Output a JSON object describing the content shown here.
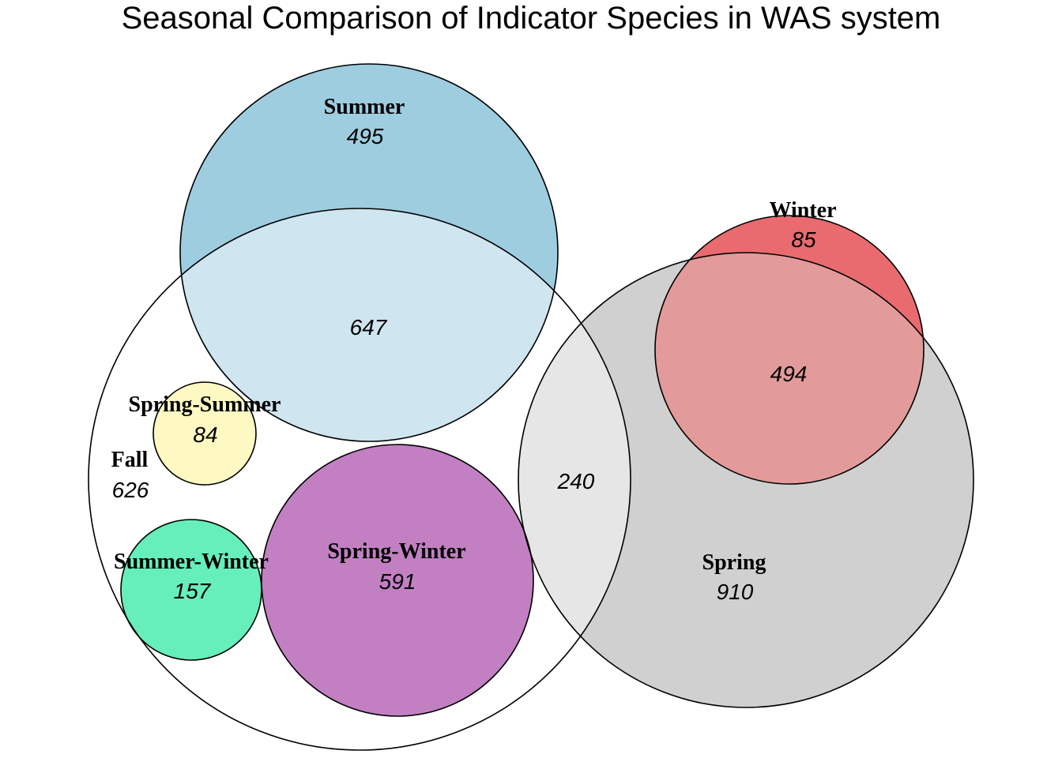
{
  "title": "Seasonal Comparison of Indicator Species in WAS system",
  "sets": {
    "summer": {
      "label": "Summer",
      "count": "495",
      "color": "#9ecde0"
    },
    "fall": {
      "label": "Fall",
      "count": "626",
      "color": "#ffffff"
    },
    "spring_summer": {
      "label": "Spring-Summer",
      "count": "84",
      "color": "#fef8c3"
    },
    "summer_winter": {
      "label": "Summer-Winter",
      "count": "157",
      "color": "#66eebb"
    },
    "spring_winter": {
      "label": "Spring-Winter",
      "count": "591",
      "color": "#c280c3"
    },
    "spring": {
      "label": "Spring",
      "count": "910",
      "color": "#d0d0d0"
    },
    "winter": {
      "label": "Winter",
      "count": "85",
      "color": "#e96b6f"
    }
  },
  "overlaps": {
    "fall_summer": {
      "count": "647",
      "color": "#cfe5f0"
    },
    "fall_spring": {
      "count": "240",
      "color": "#e6e6e6"
    },
    "spring_winter_overlap": {
      "count": "494",
      "color": "#e29b9a"
    }
  }
}
